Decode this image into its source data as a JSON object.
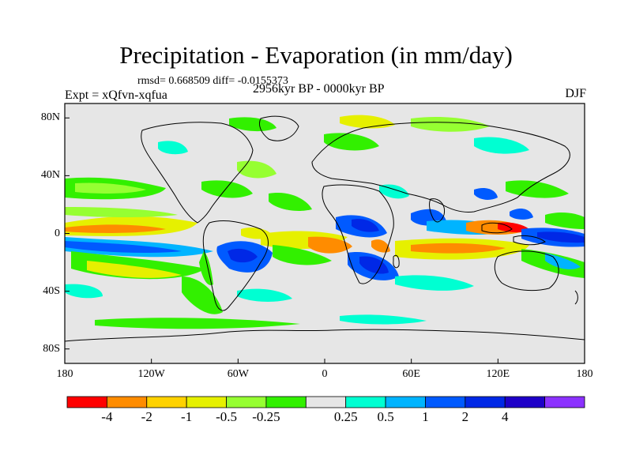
{
  "title": "Precipitation - Evaporation (in mm/day)",
  "stats": "rmsd= 0.668509 diff= -0.0155373",
  "experiment": "Expt = xQfvn-xqfua",
  "period": "2956kyr BP - 0000kyr BP",
  "season": "DJF",
  "map": {
    "lon_range": [
      -180,
      180
    ],
    "lat_range": [
      -90,
      90
    ],
    "lat_ticks": [
      {
        "value": 80,
        "label": "80N"
      },
      {
        "value": 40,
        "label": "40N"
      },
      {
        "value": 0,
        "label": "0"
      },
      {
        "value": -40,
        "label": "40S"
      },
      {
        "value": -80,
        "label": "80S"
      }
    ],
    "lon_ticks": [
      {
        "value": -180,
        "label": "180"
      },
      {
        "value": -120,
        "label": "120W"
      },
      {
        "value": -60,
        "label": "60W"
      },
      {
        "value": 0,
        "label": "0"
      },
      {
        "value": 60,
        "label": "60E"
      },
      {
        "value": 120,
        "label": "120E"
      },
      {
        "value": 180,
        "label": "180"
      }
    ],
    "background_color": "#e6e6e6"
  },
  "colorbar": {
    "colors": [
      "#ff0000",
      "#ff8c00",
      "#ffd200",
      "#e6f000",
      "#96ff32",
      "#32f000",
      "#e6e6e6",
      "#00ffd2",
      "#00b4ff",
      "#005aff",
      "#0028e6",
      "#1e00c8",
      "#8c32ff"
    ],
    "labels": [
      "-4",
      "-2",
      "-1",
      "-0.5",
      "-0.25",
      "0.25",
      "0.5",
      "1",
      "2",
      "4"
    ]
  },
  "colors": {
    "land_outline": "#000000",
    "frame": "#000000"
  }
}
